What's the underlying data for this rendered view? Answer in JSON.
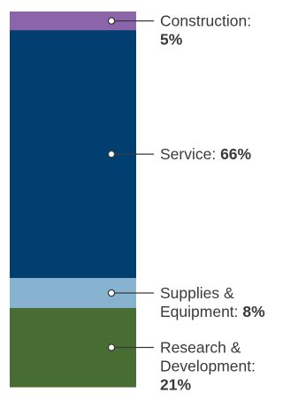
{
  "chart_data": {
    "type": "bar",
    "stacked": true,
    "unit": "%",
    "segments": [
      {
        "name": "Construction",
        "value": 5,
        "label_lines": [
          "Construction:"
        ],
        "value_text": "5%",
        "value_on_new_line": true,
        "color": "#8c64aa"
      },
      {
        "name": "Service",
        "value": 66,
        "label_lines": [
          "Service:"
        ],
        "value_text": "66%",
        "value_on_new_line": false,
        "color": "#003f70"
      },
      {
        "name": "Supplies & Equipment",
        "value": 8,
        "label_lines": [
          "Supplies &",
          "Equipment:"
        ],
        "value_text": "8%",
        "value_on_new_line": false,
        "color": "#87b3d0"
      },
      {
        "name": "Research & Development",
        "value": 21,
        "label_lines": [
          "Research &",
          "Development:"
        ],
        "value_text": "21%",
        "value_on_new_line": true,
        "color": "#476d32"
      }
    ],
    "connector_color": "#3a3a3a"
  }
}
